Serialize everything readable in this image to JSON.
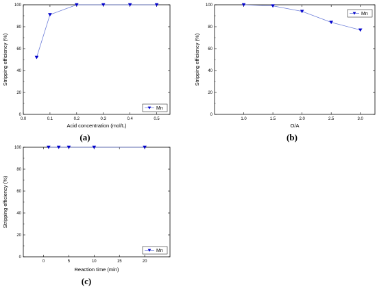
{
  "chart_data": [
    {
      "id": "a",
      "panel_label": "(a)",
      "type": "line",
      "xlabel": "Acid concentration (mol/L)",
      "ylabel": "Stripping efficiency (%)",
      "xlim": [
        0.0,
        0.55
      ],
      "ylim": [
        0,
        100
      ],
      "xticks": [
        0.0,
        0.1,
        0.2,
        0.3,
        0.4,
        0.5
      ],
      "yticks": [
        0,
        20,
        40,
        60,
        80,
        100
      ],
      "xtick_labels": [
        "0.0",
        "0.1",
        "0.2",
        "0.3",
        "0.4",
        "0.5"
      ],
      "ytick_labels": [
        "0",
        "20",
        "40",
        "60",
        "80",
        "100"
      ],
      "legend_position": "bottom-right",
      "series": [
        {
          "name": "Mn",
          "marker": "triangle-down",
          "color": "#0000cc",
          "x": [
            0.05,
            0.1,
            0.2,
            0.3,
            0.4,
            0.5
          ],
          "y": [
            52,
            91,
            100,
            100,
            100,
            100
          ]
        }
      ]
    },
    {
      "id": "b",
      "panel_label": "(b)",
      "type": "line",
      "xlabel": "O/A",
      "ylabel": "Stripping efficiency (%)",
      "xlim": [
        0.5,
        3.25
      ],
      "ylim": [
        0,
        100
      ],
      "xticks": [
        1.0,
        1.5,
        2.0,
        2.5,
        3.0
      ],
      "yticks": [
        0,
        20,
        40,
        60,
        80,
        100
      ],
      "xtick_labels": [
        "1.0",
        "1.5",
        "2.0",
        "2.5",
        "3.0"
      ],
      "ytick_labels": [
        "0",
        "20",
        "40",
        "60",
        "80",
        "100"
      ],
      "legend_position": "top-right",
      "series": [
        {
          "name": "Mn",
          "marker": "triangle-down",
          "color": "#0000cc",
          "x": [
            1.0,
            1.5,
            2.0,
            2.5,
            3.0
          ],
          "y": [
            100,
            99,
            94,
            84,
            77
          ]
        }
      ]
    },
    {
      "id": "c",
      "panel_label": "(c)",
      "type": "line",
      "xlabel": "Reaction time (min)",
      "ylabel": "Stripping efficiency (%)",
      "xlim": [
        -4,
        25
      ],
      "ylim": [
        0,
        100
      ],
      "xticks": [
        0,
        5,
        10,
        15,
        20
      ],
      "yticks": [
        0,
        20,
        40,
        60,
        80,
        100
      ],
      "xtick_labels": [
        "0",
        "5",
        "10",
        "15",
        "20"
      ],
      "ytick_labels": [
        "0",
        "20",
        "40",
        "60",
        "80",
        "100"
      ],
      "legend_position": "bottom-right",
      "series": [
        {
          "name": "Mn",
          "marker": "triangle-down",
          "color": "#0000cc",
          "x": [
            1,
            3,
            5,
            10,
            20
          ],
          "y": [
            100,
            100,
            100,
            100,
            100
          ]
        }
      ]
    }
  ]
}
